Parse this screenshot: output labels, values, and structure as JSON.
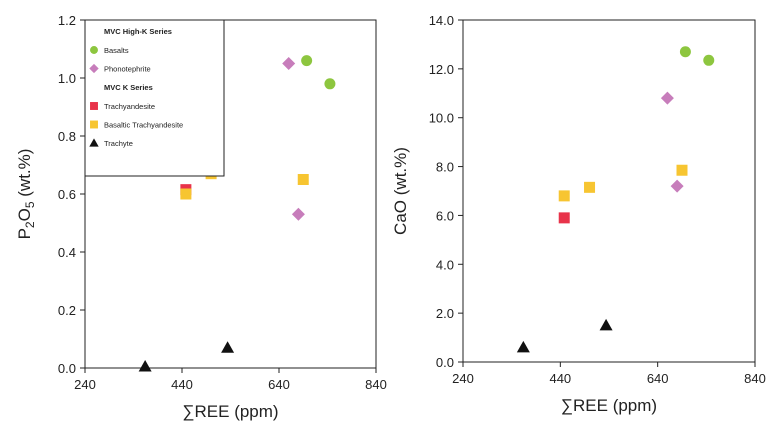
{
  "chart_data": [
    {
      "type": "scatter",
      "xlabel_prefix": "∑",
      "xlabel": "REE (ppm)",
      "ylabel_main": "P",
      "ylabel_sub1": "2",
      "ylabel_mid": "O",
      "ylabel_sub2": "5",
      "ylabel_tail": " (wt.%)",
      "xlim": [
        240,
        840
      ],
      "ylim": [
        0.0,
        1.2
      ],
      "xticks": [
        "240",
        "440",
        "640",
        "840"
      ],
      "yticks": [
        "0.0",
        "0.2",
        "0.4",
        "0.6",
        "0.8",
        "1.0",
        "1.2"
      ],
      "legend": {
        "position": "top-left",
        "groups": [
          {
            "header": "MVC High-K Series",
            "entries": [
              {
                "label": "Basalts",
                "series": "basalts"
              },
              {
                "label": "Phonotephrite",
                "series": "phonotephrite"
              }
            ]
          },
          {
            "header": "MVC K Series",
            "entries": [
              {
                "label": "Trachyandesite",
                "series": "trachyandesite"
              },
              {
                "label": "Basaltic Trachyandesite",
                "series": "basaltic_trachyandesite"
              },
              {
                "label": "Trachyte",
                "series": "trachyte"
              }
            ]
          }
        ]
      },
      "series": [
        {
          "key": "basalts",
          "marker": "circle",
          "color": "#8dc63f",
          "points": [
            [
              697,
              1.06
            ],
            [
              745,
              0.98
            ]
          ]
        },
        {
          "key": "phonotephrite",
          "marker": "diamond",
          "color": "#c77dbb",
          "points": [
            [
              660,
              1.05
            ],
            [
              680,
              0.53
            ]
          ]
        },
        {
          "key": "trachyandesite",
          "marker": "square",
          "color": "#e8334a",
          "points": [
            [
              448,
              0.615
            ]
          ]
        },
        {
          "key": "basaltic_trachyandesite",
          "marker": "square",
          "color": "#f7c531",
          "points": [
            [
              448,
              0.6
            ],
            [
              500,
              0.67
            ],
            [
              690,
              0.65
            ]
          ]
        },
        {
          "key": "trachyte",
          "marker": "triangle",
          "color": "#111111",
          "points": [
            [
              364,
              0.005
            ],
            [
              534,
              0.07
            ]
          ]
        }
      ]
    },
    {
      "type": "scatter",
      "xlabel_prefix": "∑",
      "xlabel": "REE (ppm)",
      "ylabel_main": "CaO",
      "ylabel_tail": " (wt.%)",
      "xlim": [
        240,
        840
      ],
      "ylim": [
        0.0,
        14.0
      ],
      "xticks": [
        "240",
        "440",
        "640",
        "840"
      ],
      "yticks": [
        "0.0",
        "2.0",
        "4.0",
        "6.0",
        "8.0",
        "10.0",
        "12.0",
        "14.0"
      ],
      "series": [
        {
          "key": "basalts",
          "marker": "circle",
          "color": "#8dc63f",
          "points": [
            [
              697,
              12.7
            ],
            [
              745,
              12.35
            ]
          ]
        },
        {
          "key": "phonotephrite",
          "marker": "diamond",
          "color": "#c77dbb",
          "points": [
            [
              660,
              10.8
            ],
            [
              680,
              7.2
            ]
          ]
        },
        {
          "key": "trachyandesite",
          "marker": "square",
          "color": "#e8334a",
          "points": [
            [
              448,
              5.9
            ]
          ]
        },
        {
          "key": "basaltic_trachyandesite",
          "marker": "square",
          "color": "#f7c531",
          "points": [
            [
              448,
              6.8
            ],
            [
              500,
              7.15
            ],
            [
              690,
              7.85
            ]
          ]
        },
        {
          "key": "trachyte",
          "marker": "triangle",
          "color": "#111111",
          "points": [
            [
              364,
              0.6
            ],
            [
              534,
              1.5
            ]
          ]
        }
      ]
    }
  ]
}
